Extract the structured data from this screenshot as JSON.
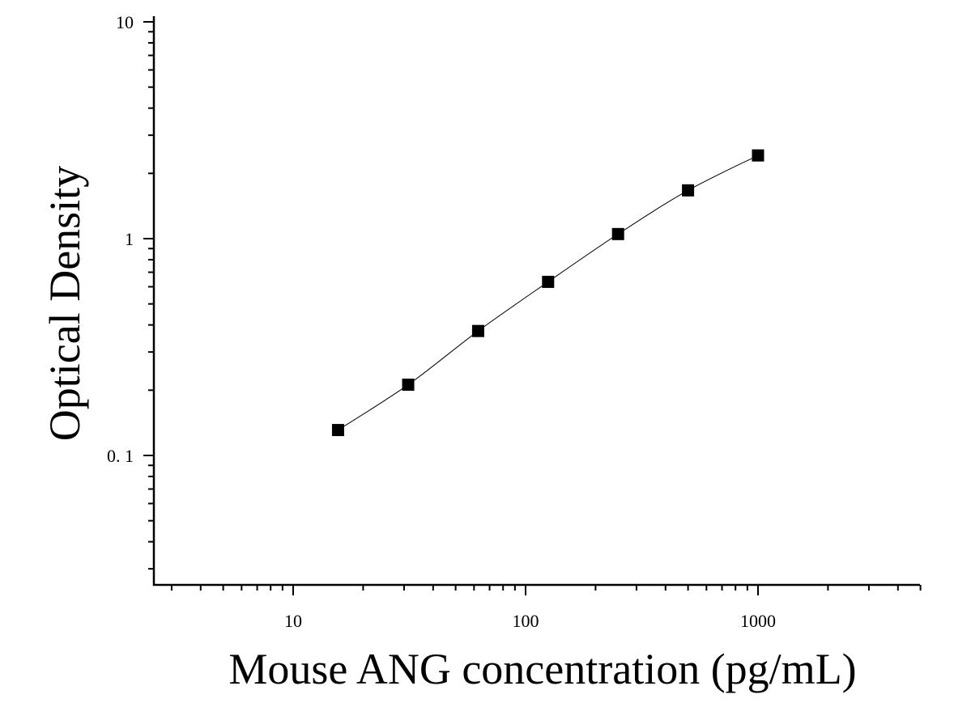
{
  "chart_data": {
    "type": "scatter",
    "title": "",
    "xlabel": "Mouse ANG concentration (pg/mL)",
    "ylabel": "Optical Density",
    "x_scale": "log",
    "y_scale": "log",
    "xlim": [
      2.5,
      5000
    ],
    "ylim": [
      0.025,
      10
    ],
    "x_tick_values": [
      10,
      100,
      1000
    ],
    "x_tick_labels": [
      "10",
      "100",
      "1000"
    ],
    "y_tick_values": [
      0.1,
      1,
      10
    ],
    "y_tick_labels": [
      "0. 1",
      "1",
      "10"
    ],
    "grid": false,
    "legend": "none",
    "marker": "square",
    "marker_color": "#000000",
    "fit_line_color": "#000000",
    "series": [
      {
        "x": [
          15.6,
          31.25,
          62.5,
          125,
          250,
          500,
          1000
        ],
        "y": [
          0.131,
          0.212,
          0.375,
          0.632,
          1.05,
          1.67,
          2.42
        ]
      }
    ]
  }
}
